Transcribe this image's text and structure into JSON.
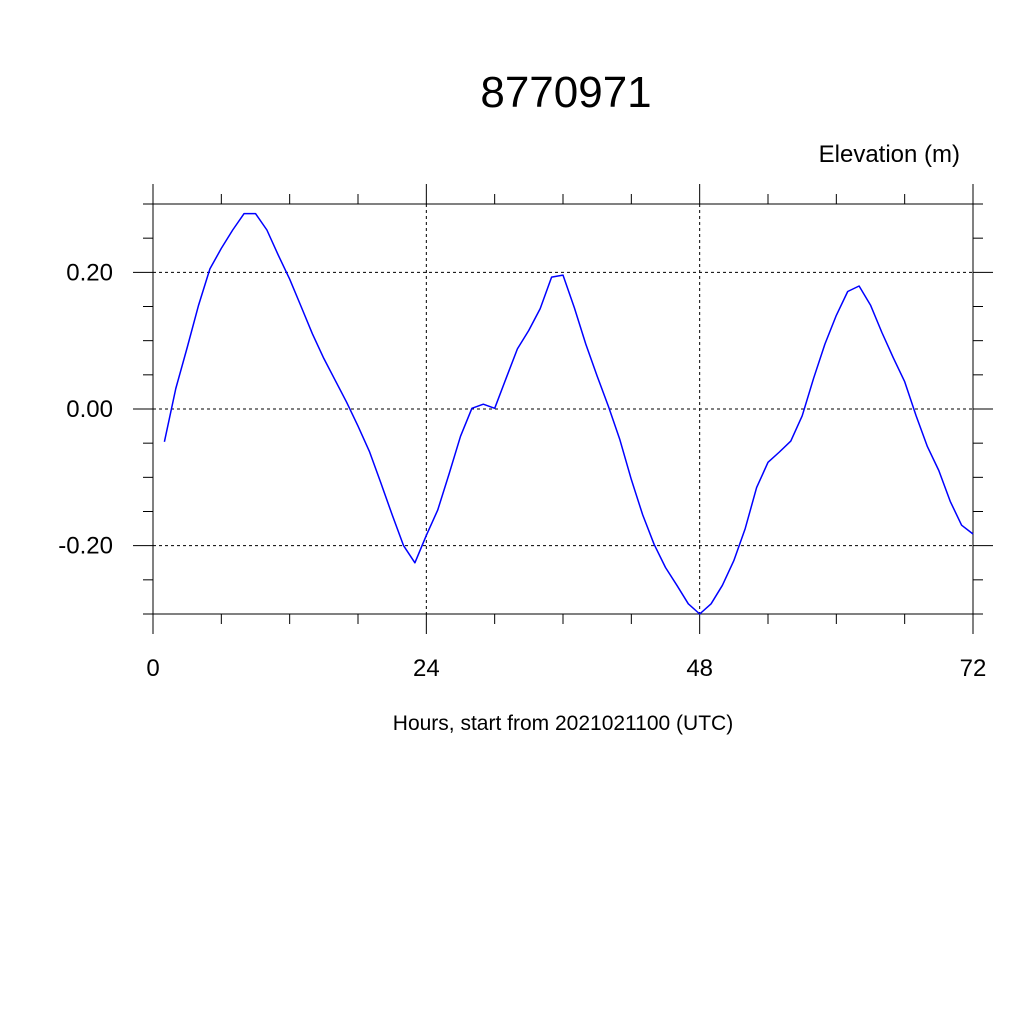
{
  "chart_data": {
    "type": "line",
    "title": "8770971",
    "ylabel": "Elevation (m)",
    "xlabel": "Hours, start from 2021021100 (UTC)",
    "xlim": [
      0,
      72
    ],
    "ylim": [
      -0.3,
      0.3
    ],
    "x_ticks": [
      0,
      24,
      48,
      72
    ],
    "x_tick_labels": [
      "0",
      "24",
      "48",
      "72"
    ],
    "y_ticks": [
      -0.2,
      0.0,
      0.2
    ],
    "y_tick_labels": [
      "-0.20",
      "0.00",
      "0.20"
    ],
    "grid": true,
    "line_color": "#0000ff",
    "series": [
      {
        "x": [
          1,
          2,
          3,
          4,
          5,
          6,
          7,
          8,
          9,
          10,
          11,
          12,
          13,
          14,
          15,
          16,
          17,
          18,
          19,
          20,
          21,
          22,
          23,
          24,
          25,
          26,
          27,
          28,
          29,
          30,
          31,
          32,
          33,
          34,
          35,
          36,
          37,
          38,
          39,
          40,
          41,
          42,
          43,
          44,
          45,
          46,
          47,
          48,
          49,
          50,
          51,
          52,
          53,
          54,
          55,
          56,
          57,
          58,
          59,
          60,
          61,
          62,
          63,
          64,
          65,
          66,
          67,
          68,
          69,
          70,
          71,
          72
        ],
        "values": [
          -0.048,
          0.03,
          0.09,
          0.152,
          0.205,
          0.235,
          0.262,
          0.286,
          0.286,
          0.262,
          0.225,
          0.19,
          0.15,
          0.11,
          0.074,
          0.042,
          0.01,
          -0.025,
          -0.062,
          -0.108,
          -0.155,
          -0.2,
          -0.225,
          -0.185,
          -0.148,
          -0.095,
          -0.04,
          0.001,
          0.007,
          0.001,
          0.045,
          0.088,
          0.115,
          0.147,
          0.193,
          0.196,
          0.148,
          0.095,
          0.048,
          0.003,
          -0.045,
          -0.103,
          -0.155,
          -0.198,
          -0.232,
          -0.258,
          -0.285,
          -0.3,
          -0.285,
          -0.258,
          -0.222,
          -0.175,
          -0.115,
          -0.078,
          -0.063,
          -0.047,
          -0.01,
          0.045,
          0.095,
          0.137,
          0.172,
          0.18,
          0.152,
          0.112,
          0.075,
          0.04,
          -0.01,
          -0.055,
          -0.09,
          -0.135,
          -0.17,
          -0.183
        ]
      }
    ]
  }
}
